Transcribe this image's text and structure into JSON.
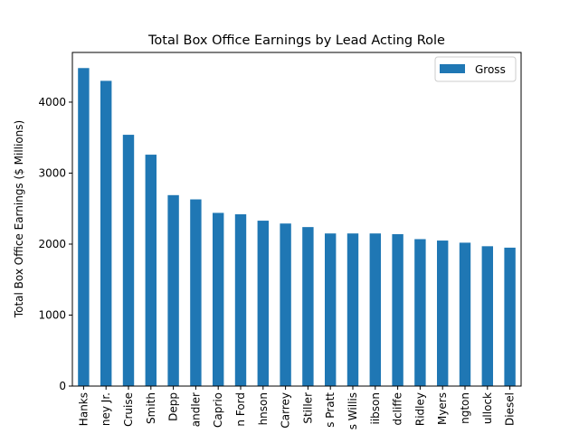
{
  "chart_data": {
    "type": "bar",
    "title": "Total Box Office Earnings by Lead Acting Role",
    "xlabel": "",
    "ylabel": "Total Box Office Earnings ($ Millions)",
    "ylim": [
      0,
      4700
    ],
    "yticks": [
      0,
      1000,
      2000,
      3000,
      4000
    ],
    "categories": [
      "Hanks",
      "ney Jr.",
      "Cruise",
      "Smith",
      "Depp",
      "andler",
      "Caprio",
      "n Ford",
      "hnson",
      "Carrey",
      "Stiller",
      "s Pratt",
      "s Willis",
      "iibson",
      "dcliffe",
      "Ridley",
      "Myers",
      "ngton",
      "ullock",
      "Diesel"
    ],
    "series": [
      {
        "name": "Gross",
        "color": "#1f77b4",
        "values": [
          4480,
          4300,
          3540,
          3260,
          2690,
          2630,
          2440,
          2420,
          2330,
          2290,
          2240,
          2150,
          2150,
          2150,
          2140,
          2070,
          2050,
          2020,
          1970,
          1950
        ]
      }
    ],
    "legend": {
      "position": "top-right"
    },
    "grid": false
  }
}
